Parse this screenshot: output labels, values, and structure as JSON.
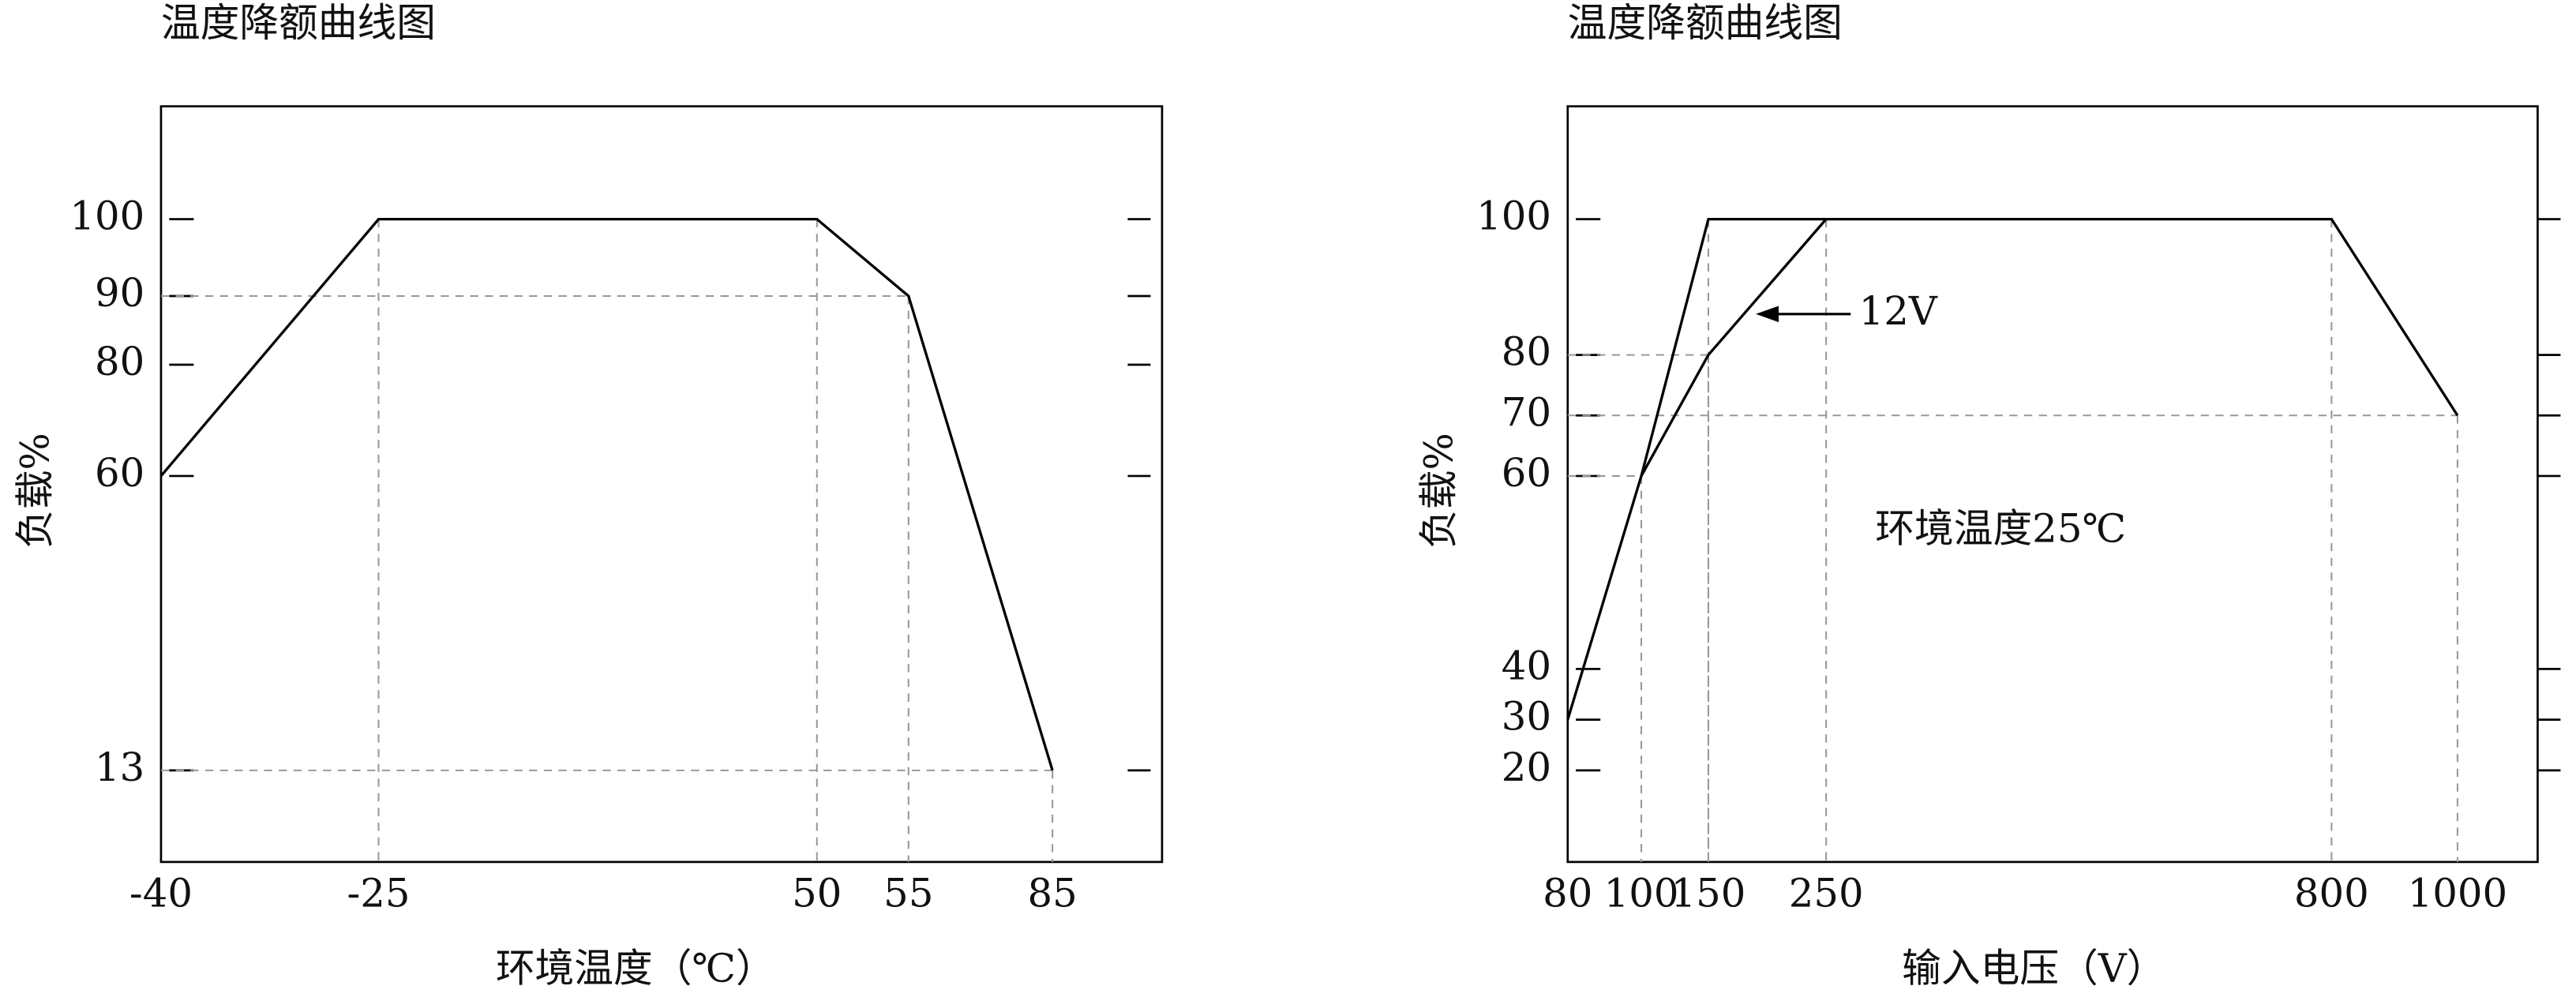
{
  "chart_data": [
    {
      "type": "line",
      "title": "温度降额曲线图",
      "x_label": "环境温度（℃）",
      "y_label": "负载%",
      "xlim": [
        -40,
        108
      ],
      "xticks": [
        -40,
        -25,
        50,
        55,
        85
      ],
      "ylim": [
        -1.6,
        115
      ],
      "yticks": [
        100,
        90,
        80,
        60,
        13
      ],
      "series": [
        {
          "color": "#000000",
          "x": [
            -40,
            -25,
            50,
            55,
            85
          ],
          "values": [
            60,
            100,
            100,
            90,
            13
          ]
        }
      ]
    },
    {
      "type": "line",
      "title": "温度降额曲线图",
      "x_label": "输入电压（V）",
      "y_label": "负载%",
      "xlim": [
        80,
        1127
      ],
      "xticks": [
        80,
        100,
        150,
        250,
        800,
        1000
      ],
      "ylim": [
        2,
        117
      ],
      "yticks": [
        100,
        80,
        70,
        60,
        40,
        30,
        20
      ],
      "annotation": "环境温度25℃",
      "series": [
        {
          "color": "#000000",
          "x": [
            80,
            100,
            150,
            800,
            1000
          ],
          "values": [
            30,
            60,
            100,
            100,
            70
          ]
        },
        {
          "name": "12V",
          "color": "#000000",
          "x": [
            100,
            150,
            250
          ],
          "values": [
            60,
            80,
            100
          ]
        }
      ]
    }
  ]
}
